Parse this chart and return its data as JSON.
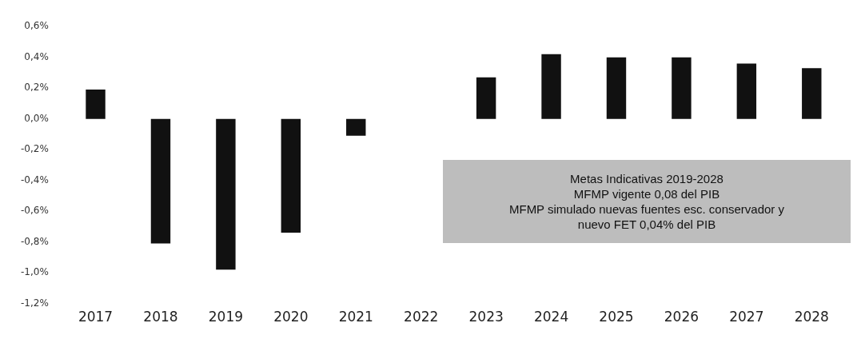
{
  "chart_data": {
    "type": "bar",
    "categories": [
      "2017",
      "2018",
      "2019",
      "2020",
      "2021",
      "2022",
      "2023",
      "2024",
      "2025",
      "2026",
      "2027",
      "2028"
    ],
    "values": [
      0.19,
      -0.81,
      -0.98,
      -0.74,
      -0.11,
      0,
      0.27,
      0.42,
      0.4,
      0.4,
      0.36,
      0.33
    ],
    "color": "#111111",
    "ylim": [
      -1.2,
      0.6
    ],
    "yticks": [
      {
        "value": 0.6,
        "label": "0,6%"
      },
      {
        "value": 0.4,
        "label": "0,4%"
      },
      {
        "value": 0.2,
        "label": "0,2%"
      },
      {
        "value": 0,
        "label": "0,0%"
      },
      {
        "value": -0.2,
        "label": "-0,2%"
      },
      {
        "value": -0.4,
        "label": "-0,4%"
      },
      {
        "value": -0.6,
        "label": "-0,6%"
      },
      {
        "value": -0.8,
        "label": "-0,8%"
      },
      {
        "value": -1.0,
        "label": "-1,0%"
      },
      {
        "value": -1.2,
        "label": "-1,2%"
      }
    ],
    "grid": false,
    "legend": false,
    "annotations": [
      "Metas Indicativas 2019-2028\nMFMP vigente 0,08 del PIB\nMFMP simulado nuevas fuentes esc. conservador y\nnuevo FET 0,04% del PIB"
    ]
  }
}
